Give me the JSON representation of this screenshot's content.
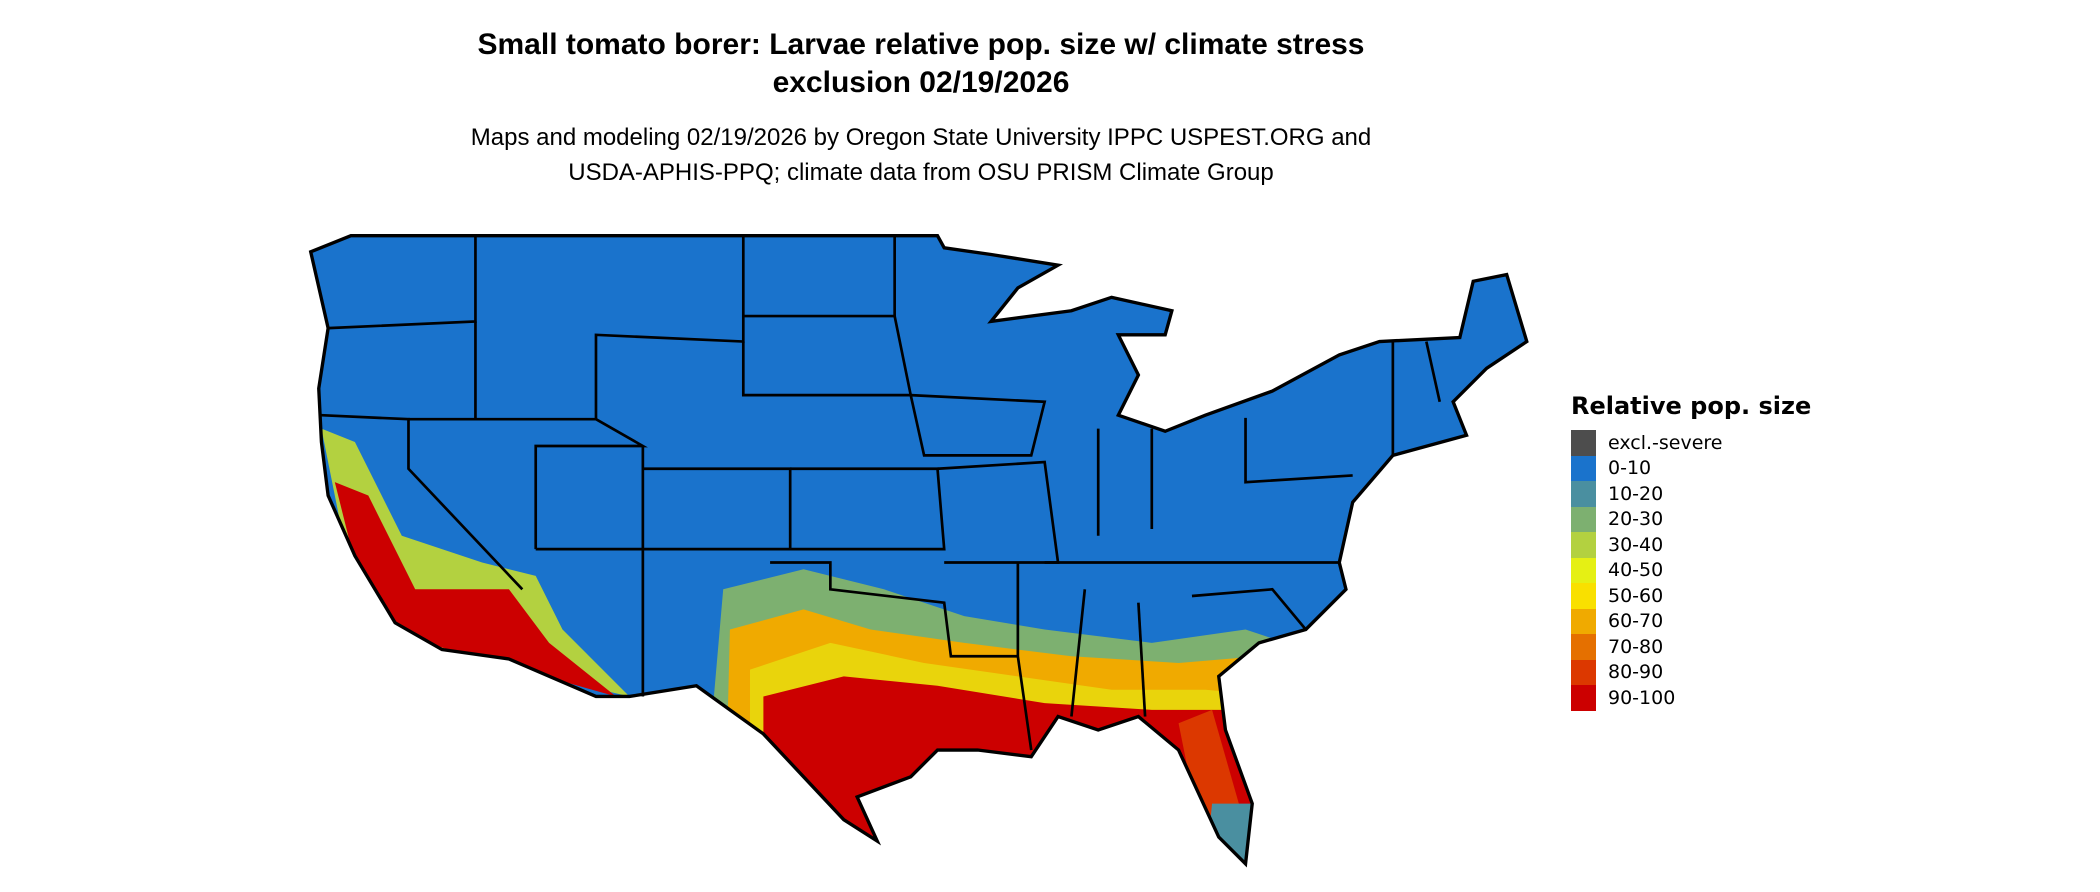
{
  "title": {
    "line1": "Small tomato borer: Larvae relative pop. size w/ climate stress",
    "line2": "exclusion 02/19/2026"
  },
  "subtitle": {
    "line1": "Maps and modeling 02/19/2026 by Oregon State University IPPC USPEST.ORG and",
    "line2": "USDA-APHIS-PPQ; climate data from OSU PRISM Climate Group"
  },
  "legend": {
    "title": "Relative pop. size",
    "items": [
      {
        "label": "excl.-severe",
        "color": "#4d4d4d"
      },
      {
        "label": "0-10",
        "color": "#1a73cc"
      },
      {
        "label": "10-20",
        "color": "#4a8fa0"
      },
      {
        "label": "20-30",
        "color": "#7db070"
      },
      {
        "label": "30-40",
        "color": "#b3d140"
      },
      {
        "label": "40-50",
        "color": "#e5f014"
      },
      {
        "label": "50-60",
        "color": "#f9e000"
      },
      {
        "label": "60-70",
        "color": "#f0aa00"
      },
      {
        "label": "70-80",
        "color": "#e57000"
      },
      {
        "label": "80-90",
        "color": "#dc3800"
      },
      {
        "label": "90-100",
        "color": "#cc0000"
      }
    ]
  },
  "map": {
    "region": "Contiguous United States",
    "base_color": "#1a73cc",
    "border_color": "#000000"
  }
}
